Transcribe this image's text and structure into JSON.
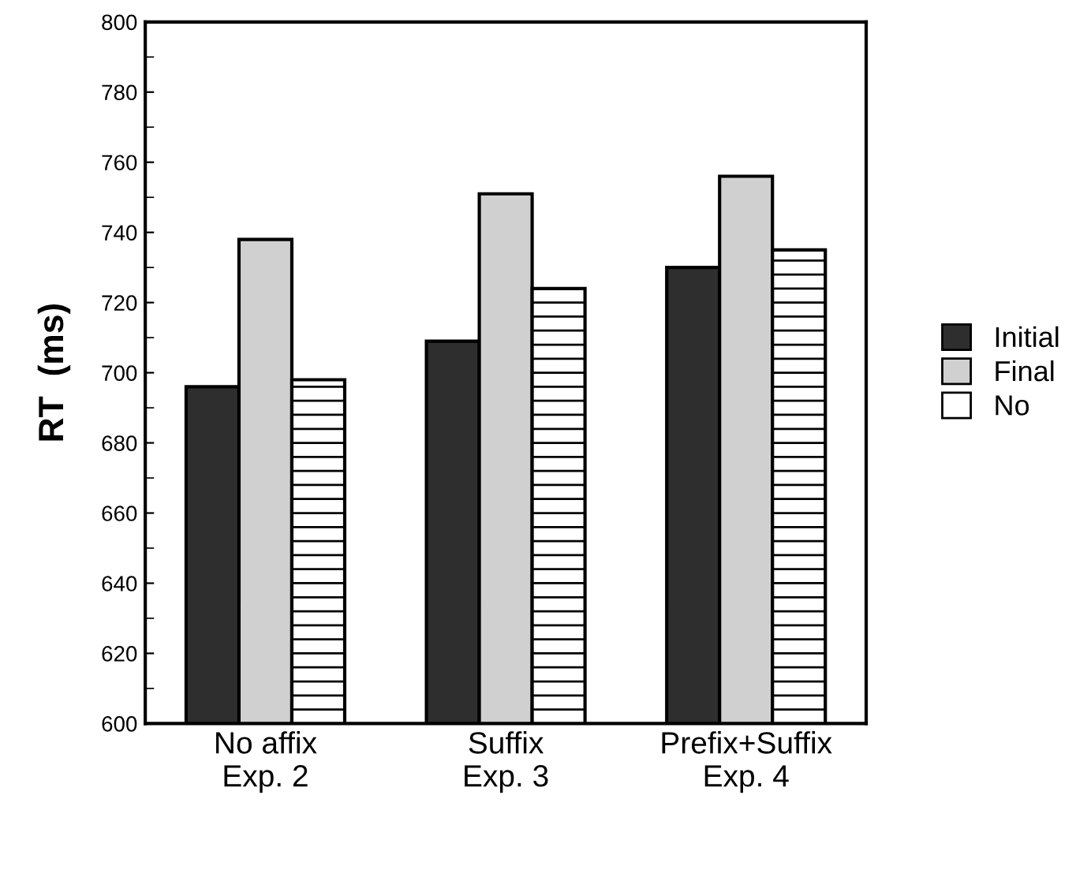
{
  "chart_data": {
    "type": "bar",
    "ylabel": "RT  (ms)",
    "categories": [
      "No affix\nExp. 2",
      "Suffix\nExp. 3",
      "Prefix+Suffix\nExp. 4"
    ],
    "series": [
      {
        "name": "Initial",
        "color": "#2e2e2e",
        "values": [
          696,
          709,
          730
        ]
      },
      {
        "name": "Final",
        "color": "#d0d0d0",
        "values": [
          738,
          751,
          756
        ]
      },
      {
        "name": "No",
        "color": "#ffffff",
        "values": [
          698,
          724,
          735
        ]
      }
    ],
    "ylim": [
      600,
      800
    ],
    "yticks": [
      600,
      620,
      640,
      660,
      680,
      700,
      720,
      740,
      760,
      780,
      800
    ],
    "grid": false,
    "legend": "right"
  }
}
